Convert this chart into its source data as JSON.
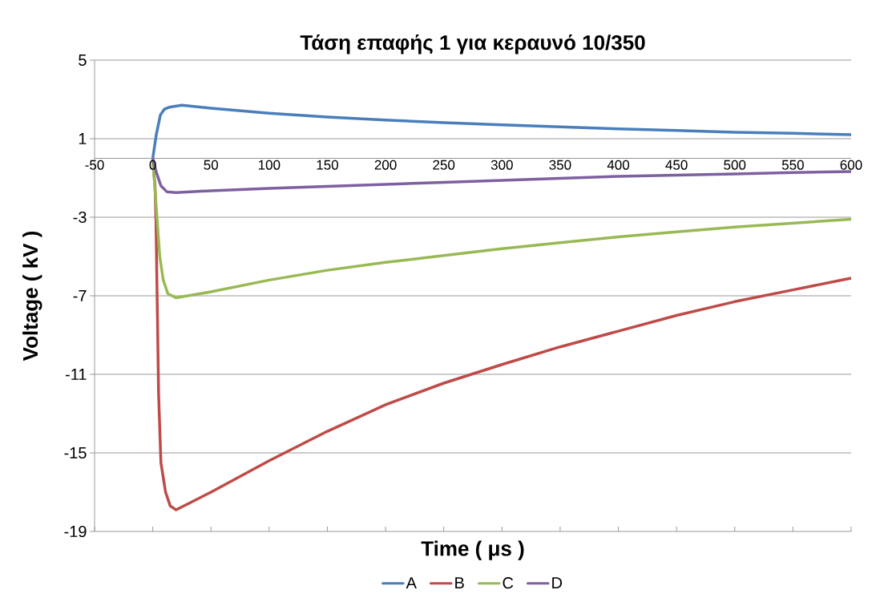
{
  "chart_data": {
    "type": "line",
    "title": "Τάση επαφής 1 για κεραυνό 10/350",
    "xlabel": "Time ( μs )",
    "ylabel": "Voltage ( kV )",
    "xlim": [
      -50,
      600
    ],
    "xticks": [
      -50,
      0,
      50,
      100,
      150,
      200,
      250,
      300,
      350,
      400,
      450,
      500,
      550,
      600
    ],
    "ylim": [
      -19,
      5
    ],
    "yticks": [
      -19,
      -15,
      -11,
      -7,
      -3,
      1,
      5
    ],
    "grid": "y",
    "legend": "bottom",
    "series": [
      {
        "name": "A",
        "color": "#4a7ebb",
        "x": [
          0,
          3,
          6.5,
          10,
          14,
          25,
          50,
          100,
          150,
          200,
          250,
          300,
          350,
          400,
          450,
          500,
          550,
          600
        ],
        "values": [
          0,
          1.2,
          2.2,
          2.5,
          2.6,
          2.7,
          2.55,
          2.3,
          2.1,
          1.95,
          1.82,
          1.7,
          1.6,
          1.5,
          1.42,
          1.33,
          1.27,
          1.2
        ]
      },
      {
        "name": "B",
        "color": "#be4b48",
        "x": [
          0,
          2,
          2.8,
          4,
          5,
          7,
          11,
          15,
          20,
          30,
          50,
          100,
          150,
          200,
          250,
          300,
          350,
          400,
          450,
          500,
          550,
          600
        ],
        "values": [
          0,
          -1.5,
          -3.3,
          -8,
          -12,
          -15.5,
          -17,
          -17.7,
          -17.9,
          -17.6,
          -17,
          -15.4,
          -13.9,
          -12.55,
          -11.45,
          -10.5,
          -9.6,
          -8.8,
          -8.0,
          -7.3,
          -6.7,
          -6.1
        ]
      },
      {
        "name": "C",
        "color": "#98b954",
        "x": [
          0,
          3,
          6,
          9,
          13,
          20,
          30,
          50,
          100,
          150,
          200,
          250,
          300,
          350,
          400,
          450,
          500,
          550,
          600
        ],
        "values": [
          0,
          -2.5,
          -5,
          -6.2,
          -6.9,
          -7.1,
          -7.0,
          -6.8,
          -6.2,
          -5.7,
          -5.3,
          -4.95,
          -4.6,
          -4.3,
          -4.0,
          -3.75,
          -3.5,
          -3.3,
          -3.1
        ]
      },
      {
        "name": "D",
        "color": "#7d60a0",
        "x": [
          0,
          3,
          7,
          12,
          20,
          50,
          100,
          150,
          200,
          250,
          300,
          350,
          400,
          450,
          500,
          550,
          600
        ],
        "values": [
          0,
          -0.7,
          -1.4,
          -1.7,
          -1.75,
          -1.65,
          -1.53,
          -1.43,
          -1.33,
          -1.22,
          -1.12,
          -1.02,
          -0.92,
          -0.86,
          -0.8,
          -0.73,
          -0.67
        ]
      }
    ]
  }
}
